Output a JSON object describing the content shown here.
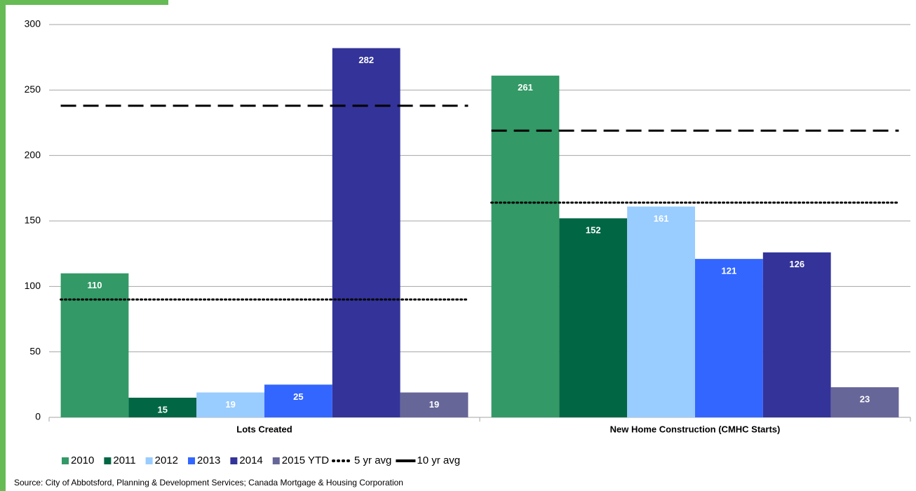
{
  "chart_data": {
    "type": "bar",
    "categories": [
      "Lots Created",
      "New Home Construction (CMHC Starts)"
    ],
    "series": [
      {
        "name": "2010",
        "color": "#339966",
        "values": [
          110,
          261
        ]
      },
      {
        "name": "2011",
        "color": "#006644",
        "values": [
          15,
          152
        ]
      },
      {
        "name": "2012",
        "color": "#99ccff",
        "values": [
          19,
          161
        ]
      },
      {
        "name": "2013",
        "color": "#3366ff",
        "values": [
          25,
          121
        ]
      },
      {
        "name": "2014",
        "color": "#333399",
        "values": [
          282,
          126
        ]
      },
      {
        "name": "2015 YTD",
        "color": "#666699",
        "values": [
          19,
          23
        ]
      }
    ],
    "reference_lines": [
      {
        "name": "5 yr avg",
        "style": "dotted",
        "color": "#000000",
        "values": [
          90,
          164
        ]
      },
      {
        "name": "10 yr avg",
        "style": "dashed",
        "color": "#000000",
        "values": [
          238,
          219
        ]
      }
    ],
    "ylim": [
      0,
      300
    ],
    "yticks": [
      0,
      50,
      100,
      150,
      200,
      250,
      300
    ],
    "grid": true,
    "source": "Source: City of Abbotsford, Planning & Development Services; Canada Mortgage & Housing Corporation"
  }
}
